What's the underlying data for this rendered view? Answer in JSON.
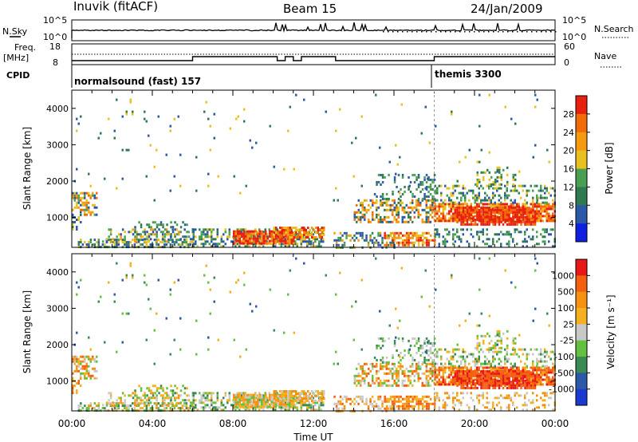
{
  "header": {
    "station": "Inuvik (fitACF)",
    "beam": "Beam 15",
    "date": "24/Jan/2009"
  },
  "top_panels": {
    "nsky_label": "N.Sky",
    "nsky_ticks": [
      "10^5",
      "10^0"
    ],
    "nsearch_label": "N.Search",
    "nsearch_ticks": [
      "10^5",
      "10^0"
    ],
    "freq_label": "Freq.",
    "freq_unit": "[MHz]",
    "freq_ticks": [
      "18",
      "8"
    ],
    "nave_label": "Nave",
    "nave_ticks": [
      "60",
      "0"
    ],
    "cpid_label": "CPID",
    "cpid_modes": [
      {
        "name": "normalsound (fast) 157",
        "start_hour": 0
      },
      {
        "name": "themis 3300",
        "start_hour": 18
      }
    ]
  },
  "chart_data": [
    {
      "type": "heatmap",
      "title": "",
      "ylabel": "Slant Range [km]",
      "xlabel": "",
      "xlim": [
        0,
        24
      ],
      "ylim": [
        180,
        4500
      ],
      "yticks": [
        "4000",
        "3000",
        "2000",
        "1000"
      ],
      "colorbar": {
        "label": "Power [dB]",
        "ticks": [
          "28",
          "24",
          "20",
          "16",
          "12",
          "8",
          "4"
        ],
        "colors": [
          "#1020e0",
          "#2c58a8",
          "#2f7a4e",
          "#4aa052",
          "#e8c020",
          "#f59a10",
          "#f26b08",
          "#e82010"
        ]
      }
    },
    {
      "type": "heatmap",
      "title": "",
      "ylabel": "Slant Range [km]",
      "xlabel": "Time UT",
      "xlim": [
        0,
        24
      ],
      "ylim": [
        180,
        4500
      ],
      "yticks": [
        "4000",
        "3000",
        "2000",
        "1000"
      ],
      "xticks": [
        "00:00",
        "04:00",
        "08:00",
        "12:00",
        "16:00",
        "20:00",
        "00:00"
      ],
      "colorbar": {
        "label": "Velocity [m s⁻¹]",
        "ticks": [
          "1000",
          "500",
          "100",
          "25",
          "-25",
          "-100",
          "-500",
          "-1000"
        ],
        "colors": [
          "#1a3ad0",
          "#2c58a8",
          "#3a8a55",
          "#66c040",
          "#c8c8c8",
          "#f5b020",
          "#f59010",
          "#f26010",
          "#e81818"
        ]
      }
    }
  ]
}
